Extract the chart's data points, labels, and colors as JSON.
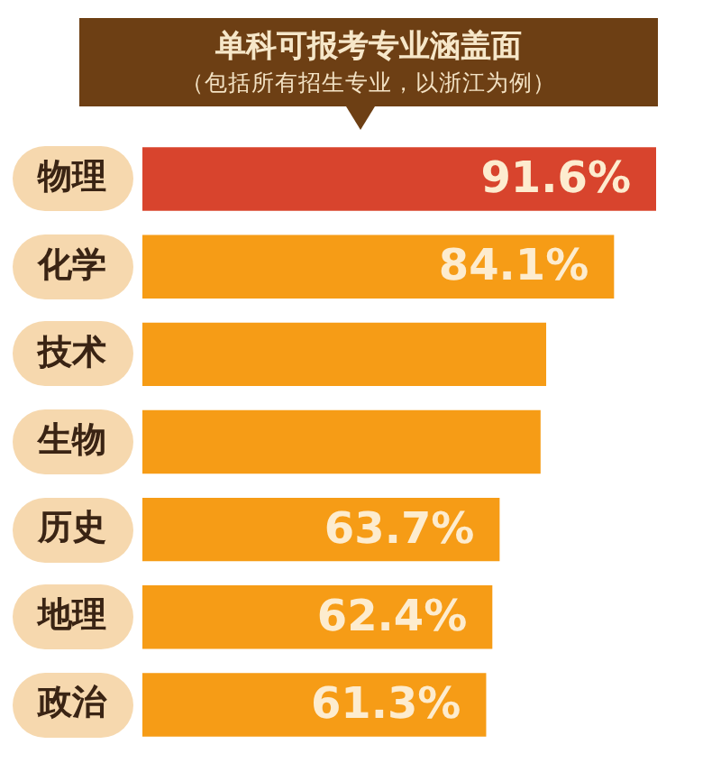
{
  "chart_data": {
    "type": "bar",
    "orientation": "horizontal",
    "title": "单科可报考专业涵盖面",
    "subtitle": "（包括所有招生专业，以浙江为例）",
    "categories": [
      "物理",
      "化学",
      "技术",
      "生物",
      "历史",
      "地理",
      "政治"
    ],
    "values": [
      91.6,
      84.1,
      72,
      71,
      63.7,
      62.4,
      61.3
    ],
    "colors": [
      "#d8442d",
      "#f69c16",
      "#f69c16",
      "#f69c16",
      "#f69c16",
      "#f69c16",
      "#f69c16"
    ],
    "value_labels": [
      "91.6%",
      "84.1%",
      null,
      null,
      "63.7%",
      "62.4%",
      "61.3%"
    ]
  }
}
